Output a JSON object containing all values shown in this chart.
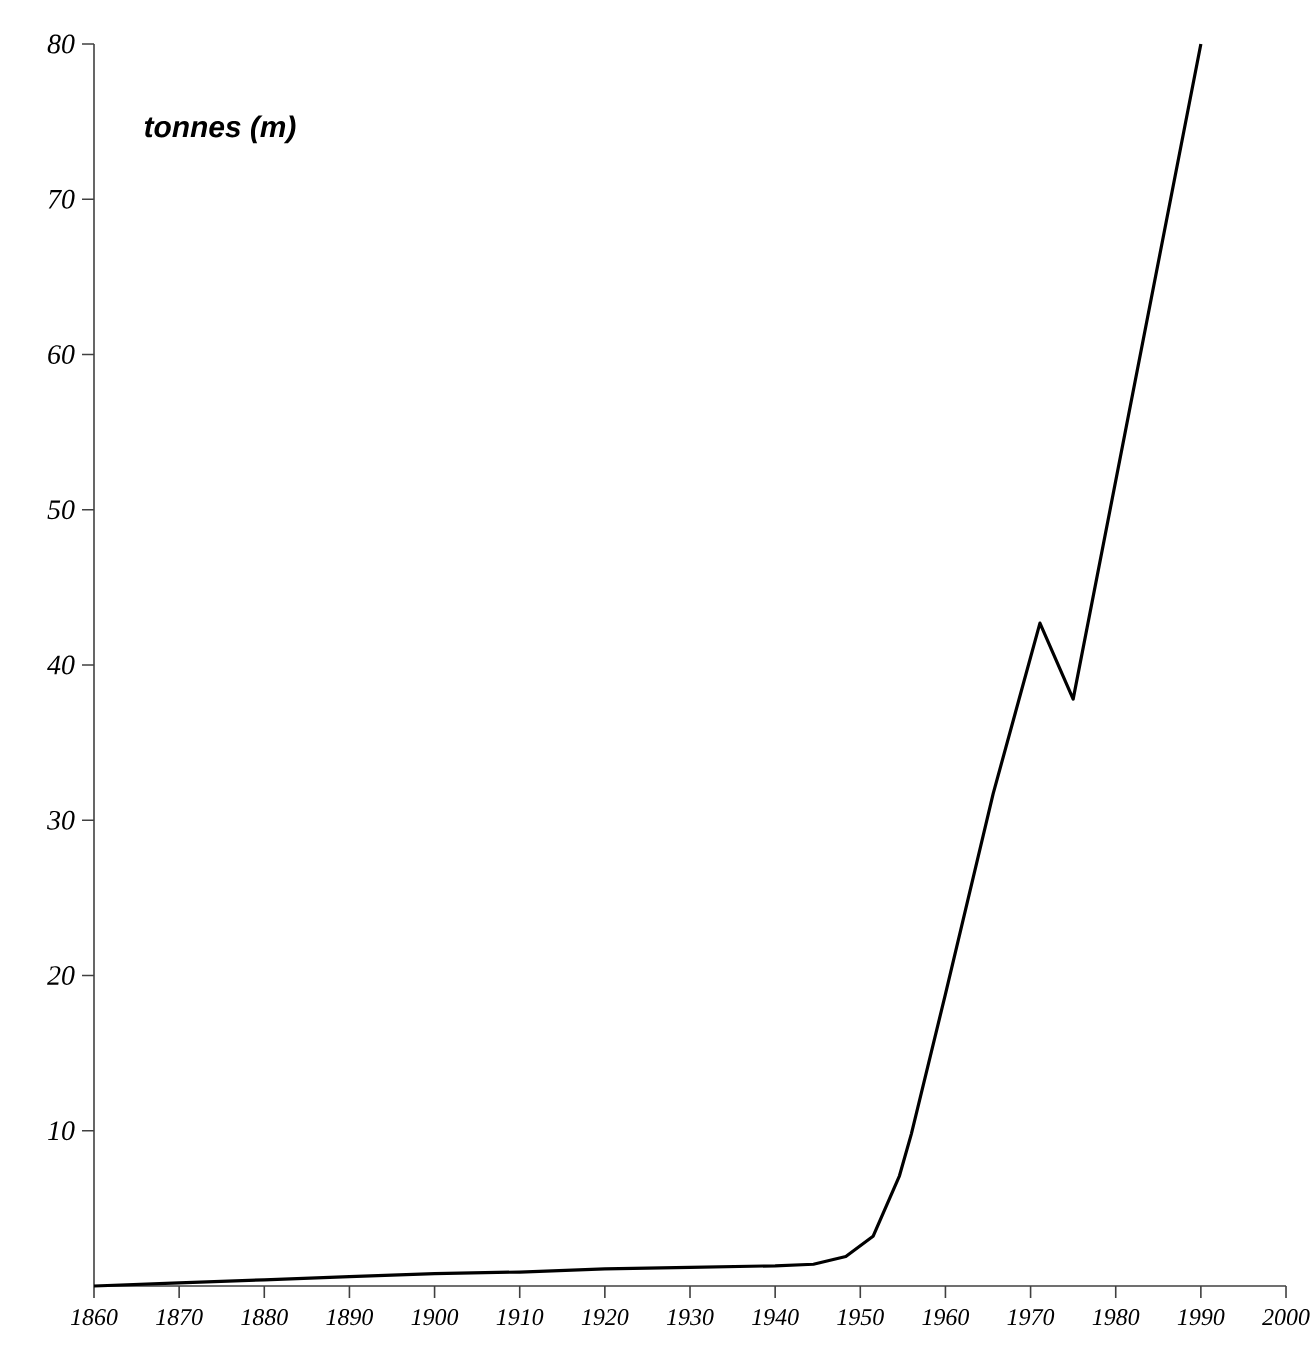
{
  "chart_data": {
    "type": "line",
    "ylabel": "tonnes (m)",
    "x": [
      1860,
      1870,
      1880,
      1890,
      1900,
      1910,
      1920,
      1930,
      1940,
      1944.5,
      1948.3,
      1951.5,
      1954.6,
      1956,
      1960,
      1965.6,
      1971.1,
      1975,
      1990
    ],
    "values": [
      0,
      0.2,
      0.4,
      0.6,
      0.8,
      0.9,
      1.1,
      1.2,
      1.3,
      1.4,
      1.9,
      3.2,
      7.1,
      9.8,
      18.8,
      31.7,
      42.7,
      37.8,
      80
    ],
    "color": "#000000",
    "xlim": [
      1860,
      2000
    ],
    "ylim": [
      0,
      80
    ],
    "xticks": [
      1860,
      1870,
      1880,
      1890,
      1900,
      1910,
      1920,
      1930,
      1940,
      1950,
      1960,
      1970,
      1980,
      1990,
      2000
    ],
    "yticks": [
      10,
      20,
      30,
      40,
      50,
      60,
      70,
      80
    ],
    "marker": "none",
    "line_style": "solid"
  }
}
